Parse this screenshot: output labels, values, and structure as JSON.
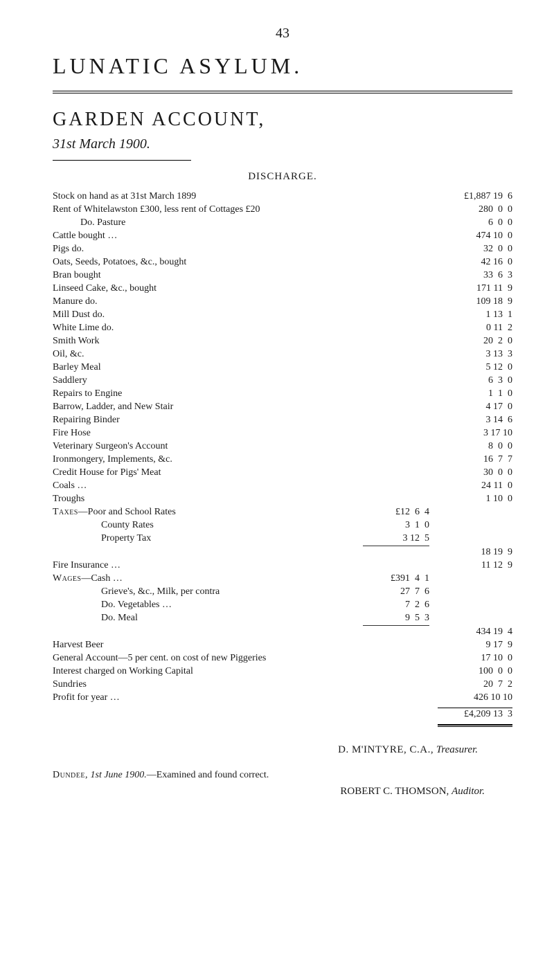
{
  "page_number": "43",
  "main_title": "LUNATIC ASYLUM.",
  "subtitle": "GARDEN ACCOUNT,",
  "date_line": "31st March 1900.",
  "section_heading": "DISCHARGE.",
  "lines": [
    {
      "desc": "Stock on hand as at 31st March 1899",
      "amt": "£1,887 19  6"
    },
    {
      "desc": "Rent of Whitelawston £300, less rent of Cottages £20",
      "amt": "280  0  0"
    },
    {
      "desc": "Do.    Pasture",
      "amt": "6  0  0",
      "indent": 1
    },
    {
      "desc": "Cattle bought …",
      "amt": "474 10  0"
    },
    {
      "desc": "Pigs       do.",
      "amt": "32  0  0"
    },
    {
      "desc": "Oats, Seeds, Potatoes, &c., bought",
      "amt": "42 16  0"
    },
    {
      "desc": "Bran bought",
      "amt": "33  6  3"
    },
    {
      "desc": "Linseed Cake, &c., bought",
      "amt": "171 11  9"
    },
    {
      "desc": "Manure              do.",
      "amt": "109 18  9"
    },
    {
      "desc": "Mill Dust            do.",
      "amt": "1 13  1"
    },
    {
      "desc": "White Lime        do.",
      "amt": "0 11  2"
    },
    {
      "desc": "Smith Work",
      "amt": "20  2  0"
    },
    {
      "desc": "Oil, &c.",
      "amt": "3 13  3"
    },
    {
      "desc": "Barley Meal",
      "amt": "5 12  0"
    },
    {
      "desc": "Saddlery",
      "amt": "6  3  0"
    },
    {
      "desc": "Repairs to Engine",
      "amt": "1  1  0"
    },
    {
      "desc": "Barrow, Ladder, and New Stair",
      "amt": "4 17  0"
    },
    {
      "desc": "Repairing Binder",
      "amt": "3 14  6"
    },
    {
      "desc": "Fire Hose",
      "amt": "3 17 10"
    },
    {
      "desc": "Veterinary Surgeon's Account",
      "amt": "8  0  0"
    },
    {
      "desc": "Ironmongery, Implements, &c.",
      "amt": "16  7  7"
    },
    {
      "desc": "Credit House for Pigs' Meat",
      "amt": "30  0  0"
    },
    {
      "desc": "Coals …",
      "amt": "24 11  0"
    },
    {
      "desc": "Troughs",
      "amt": "1 10  0"
    },
    {
      "desc": "Taxes—Poor and School Rates",
      "sub": "£12  6  4",
      "sc": true
    },
    {
      "desc": "County Rates",
      "sub": "3  1  0",
      "indent": 2
    },
    {
      "desc": "Property Tax",
      "sub": "3 12  5",
      "indent": 2
    },
    {
      "rule": "sub"
    },
    {
      "desc": "",
      "amt": "18 19  9"
    },
    {
      "desc": "Fire Insurance …",
      "amt": "11 12  9"
    },
    {
      "desc": "Wages—Cash …",
      "sub": "£391  4  1",
      "sc": true
    },
    {
      "desc": "Grieve's, &c., Milk, per contra",
      "sub": "27  7  6",
      "indent": 2
    },
    {
      "desc": "Do.        Vegetables …",
      "sub": "7  2  6",
      "indent": 2
    },
    {
      "desc": "Do.        Meal",
      "sub": "9  5  3",
      "indent": 2
    },
    {
      "rule": "sub"
    },
    {
      "desc": "",
      "amt": "434 19  4"
    },
    {
      "desc": "Harvest Beer",
      "amt": "9 17  9"
    },
    {
      "desc": "General Account—5 per cent. on cost of new Piggeries",
      "amt": "17 10  0"
    },
    {
      "desc": "Interest charged on Working Capital",
      "amt": "100  0  0"
    },
    {
      "desc": "Sundries",
      "amt": "20  7  2"
    },
    {
      "desc": "Profit for year …",
      "amt": "426 10 10"
    },
    {
      "rule": "amt"
    }
  ],
  "grand_total": "£4,209 13  3",
  "treasurer": {
    "name": "D. M'INTYRE, C.A.,",
    "role": "Treasurer."
  },
  "examined": {
    "prefix": "Dundee,",
    "date": "1st June 1900.",
    "rest": "—Examined and found correct."
  },
  "auditor": {
    "name": "ROBERT C. THOMSON,",
    "role": "Auditor."
  },
  "style": {
    "background": "#ffffff",
    "text_color": "#1a1a1a",
    "body_font": "Georgia, 'Times New Roman', serif",
    "title_fontsize": 32,
    "garden_fontsize": 28,
    "date_fontsize": 20,
    "body_fontsize": 14
  }
}
